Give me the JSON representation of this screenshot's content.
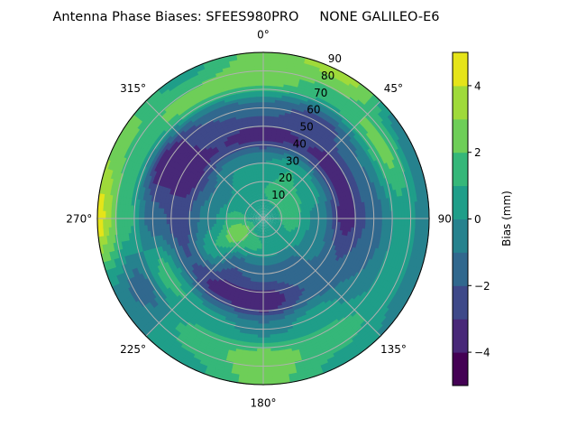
{
  "chart_data": {
    "type": "heatmap",
    "subtype": "polar-filled-contour",
    "title": "Antenna Phase Biases: SFEES980PRO     NONE GALILEO-E6",
    "angular_tick_labels": [
      "0°",
      "45°",
      "90",
      "135°",
      "180°",
      "225°",
      "270°",
      "315°"
    ],
    "angular_ticks_deg": [
      0,
      45,
      90,
      135,
      180,
      225,
      270,
      315
    ],
    "radial_tick_labels": [
      "10",
      "20",
      "30",
      "40",
      "50",
      "60",
      "70",
      "80",
      "90"
    ],
    "radial_ticks": [
      10,
      20,
      30,
      40,
      50,
      60,
      70,
      80,
      90
    ],
    "radial_range": [
      0,
      90
    ],
    "theta_direction": "clockwise",
    "theta_zero": "north",
    "grid": true,
    "colorbar": {
      "label": "Bias (mm)",
      "range": [
        -5,
        5
      ],
      "levels": [
        -5,
        -4,
        -3,
        -2,
        -1,
        0,
        1,
        2,
        3,
        4,
        5
      ],
      "tick_values": [
        -4,
        -2,
        0,
        2,
        4
      ],
      "tick_labels": [
        "−4",
        "−2",
        "0",
        "2",
        "4"
      ],
      "colors": [
        "#440154",
        "#482878",
        "#3e4989",
        "#31688e",
        "#26828e",
        "#1f9e89",
        "#35b779",
        "#6ece58",
        "#9fda3a",
        "#e5e419"
      ]
    },
    "field": {
      "azimuth_deg": [
        0,
        30,
        60,
        90,
        120,
        150,
        180,
        210,
        240,
        270,
        300,
        330
      ],
      "zenith_deg": [
        0,
        15,
        30,
        45,
        60,
        75,
        90
      ],
      "values_mm": [
        [
          0,
          1.0,
          0.0,
          -3.5,
          -1.5,
          2.5,
          2.5
        ],
        [
          0,
          1.5,
          1.0,
          -3.0,
          -2.5,
          1.5,
          3.5
        ],
        [
          0,
          1.5,
          0.5,
          -3.5,
          -1.0,
          2.5,
          -1.0
        ],
        [
          0,
          1.5,
          -0.5,
          -3.5,
          -1.5,
          0.5,
          -0.5
        ],
        [
          0,
          1.0,
          -0.5,
          -2.0,
          -1.0,
          0.5,
          -0.5
        ],
        [
          0,
          0.5,
          -1.5,
          -2.0,
          0.5,
          1.5,
          0.5
        ],
        [
          0,
          1.0,
          -1.5,
          -4.0,
          -0.5,
          2.5,
          2.5
        ],
        [
          0,
          1.5,
          -2.0,
          -3.5,
          0.5,
          1.5,
          0.5
        ],
        [
          0,
          3.0,
          1.0,
          -2.0,
          1.5,
          -1.5,
          -0.5
        ],
        [
          0,
          1.5,
          -0.5,
          -2.5,
          -1.5,
          1.5,
          4.5
        ],
        [
          0,
          0.5,
          -1.0,
          -3.5,
          -4.0,
          1.5,
          2.5
        ],
        [
          0,
          1.0,
          0.0,
          -3.0,
          -2.0,
          2.5,
          0.5
        ]
      ]
    }
  }
}
